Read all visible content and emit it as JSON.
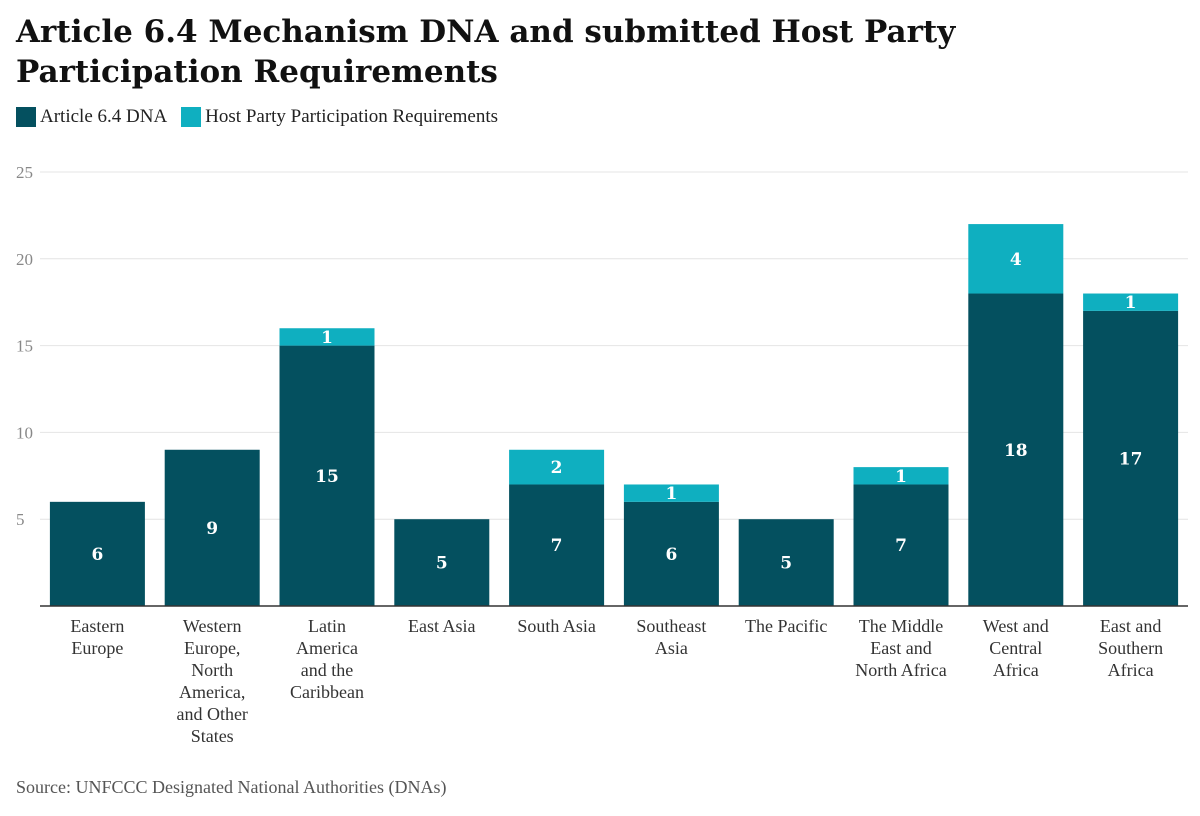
{
  "title": "Article 6.4 Mechanism DNA and submitted Host Party Participation Requirements",
  "source": "Source: UNFCCC Designated National Authorities (DNAs)",
  "legend": [
    {
      "label": "Article 6.4 DNA",
      "color": "#04505f"
    },
    {
      "label": "Host Party Participation Requirements",
      "color": "#0fafc0"
    }
  ],
  "chart_data": {
    "type": "bar",
    "stacked": true,
    "title": "Article 6.4 Mechanism DNA and submitted Host Party Participation Requirements",
    "xlabel": "",
    "ylabel": "",
    "ylim": [
      0,
      25
    ],
    "yticks": [
      5,
      10,
      15,
      20,
      25
    ],
    "grid": true,
    "legend_position": "top-left",
    "categories": [
      [
        "Eastern",
        "Europe"
      ],
      [
        "Western",
        "Europe,",
        "North",
        "America,",
        "and Other",
        "States"
      ],
      [
        "Latin",
        "America",
        "and the",
        "Caribbean"
      ],
      [
        "East Asia"
      ],
      [
        "South Asia"
      ],
      [
        "Southeast",
        "Asia"
      ],
      [
        "The Pacific"
      ],
      [
        "The Middle",
        "East and",
        "North Africa"
      ],
      [
        "West and",
        "Central",
        "Africa"
      ],
      [
        "East and",
        "Southern",
        "Africa"
      ]
    ],
    "series": [
      {
        "name": "Article 6.4 DNA",
        "color": "#04505f",
        "values": [
          6,
          9,
          15,
          5,
          7,
          6,
          5,
          7,
          18,
          17
        ]
      },
      {
        "name": "Host Party Participation Requirements",
        "color": "#0fafc0",
        "values": [
          0,
          0,
          1,
          0,
          2,
          1,
          0,
          1,
          4,
          1
        ]
      }
    ]
  }
}
